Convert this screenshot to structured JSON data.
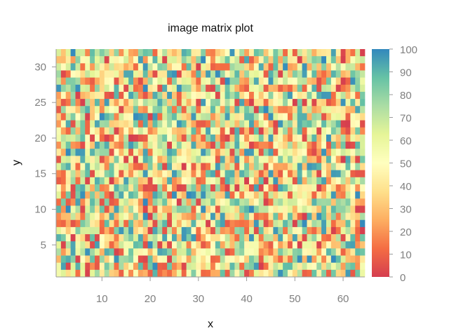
{
  "chart_data": {
    "type": "heatmap",
    "title": "image matrix plot",
    "xlabel": "x",
    "ylabel": "y",
    "xlim": [
      0.5,
      64.5
    ],
    "ylim": [
      0.5,
      32.5
    ],
    "ncols": 64,
    "nrows": 32,
    "xticks": [
      10,
      20,
      30,
      40,
      50,
      60
    ],
    "yticks": [
      5,
      10,
      15,
      20,
      25,
      30
    ],
    "colorbar": {
      "min": 0,
      "max": 100,
      "ticks": [
        0,
        10,
        20,
        30,
        40,
        50,
        60,
        70,
        80,
        90,
        100
      ],
      "palette": [
        "#d53e4f",
        "#f46d43",
        "#fdae61",
        "#fee08b",
        "#ffffbf",
        "#e6f598",
        "#abdda4",
        "#66c2a5",
        "#3288bd"
      ]
    },
    "value_distribution": "uniform random 0-100",
    "grid": false,
    "legend_position": "right"
  }
}
